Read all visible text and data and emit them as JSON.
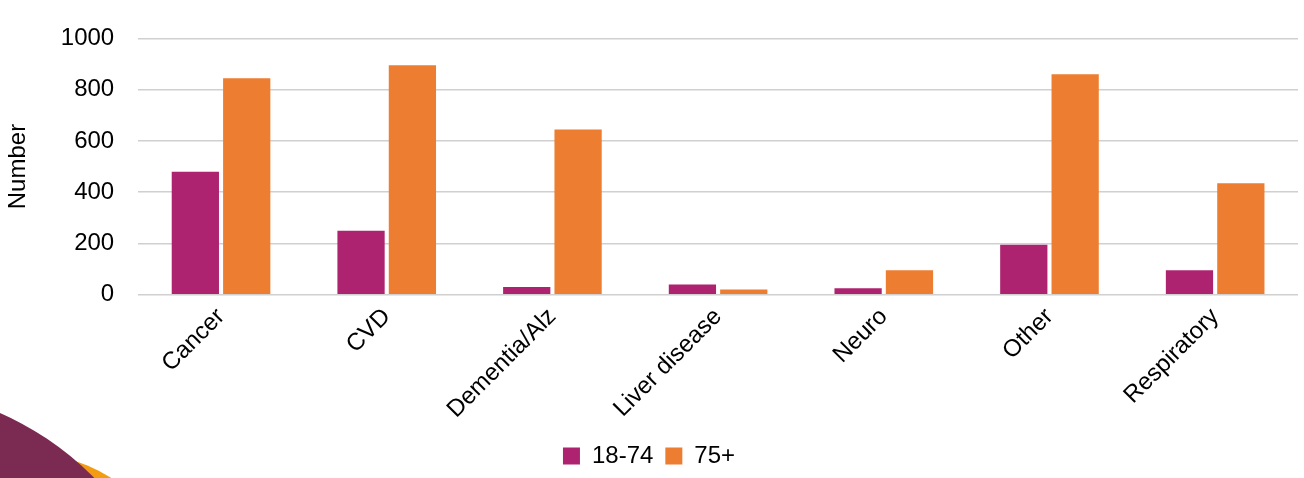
{
  "chart_data": {
    "type": "bar",
    "ylabel": "Number",
    "categories": [
      "Cancer",
      "CVD",
      "Dementia/Alz",
      "Liver disease",
      "Neuro",
      "Other",
      "Respiratory"
    ],
    "series": [
      {
        "name": "18-74",
        "color": "#ae2370",
        "values": [
          480,
          250,
          30,
          40,
          25,
          195,
          95
        ]
      },
      {
        "name": "75+",
        "color": "#ed7d31",
        "values": [
          845,
          895,
          645,
          20,
          95,
          860,
          435
        ]
      }
    ],
    "ylim": [
      0,
      1000
    ],
    "yticks": [
      0,
      200,
      400,
      600,
      800,
      1000
    ],
    "grid": "y",
    "legend": "bottom"
  }
}
